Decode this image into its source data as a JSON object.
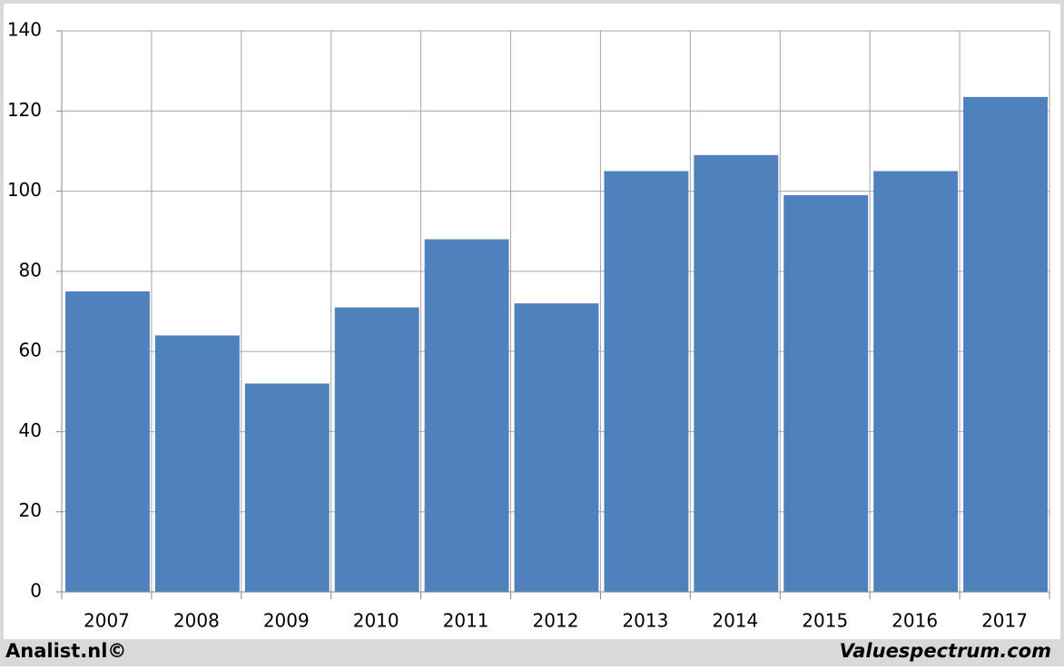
{
  "chart_data": {
    "type": "bar",
    "categories": [
      "2007",
      "2008",
      "2009",
      "2010",
      "2011",
      "2012",
      "2013",
      "2014",
      "2015",
      "2016",
      "2017"
    ],
    "values": [
      75,
      64,
      52,
      71,
      88,
      72,
      105,
      109,
      99,
      105,
      123.5
    ],
    "color": "#4f81bd",
    "ylim": [
      0,
      140
    ],
    "yticks": [
      0,
      20,
      40,
      60,
      80,
      100,
      120,
      140
    ],
    "grid": true
  },
  "footer": {
    "left": "Analist.nl©",
    "right": "Valuespectrum.com"
  }
}
